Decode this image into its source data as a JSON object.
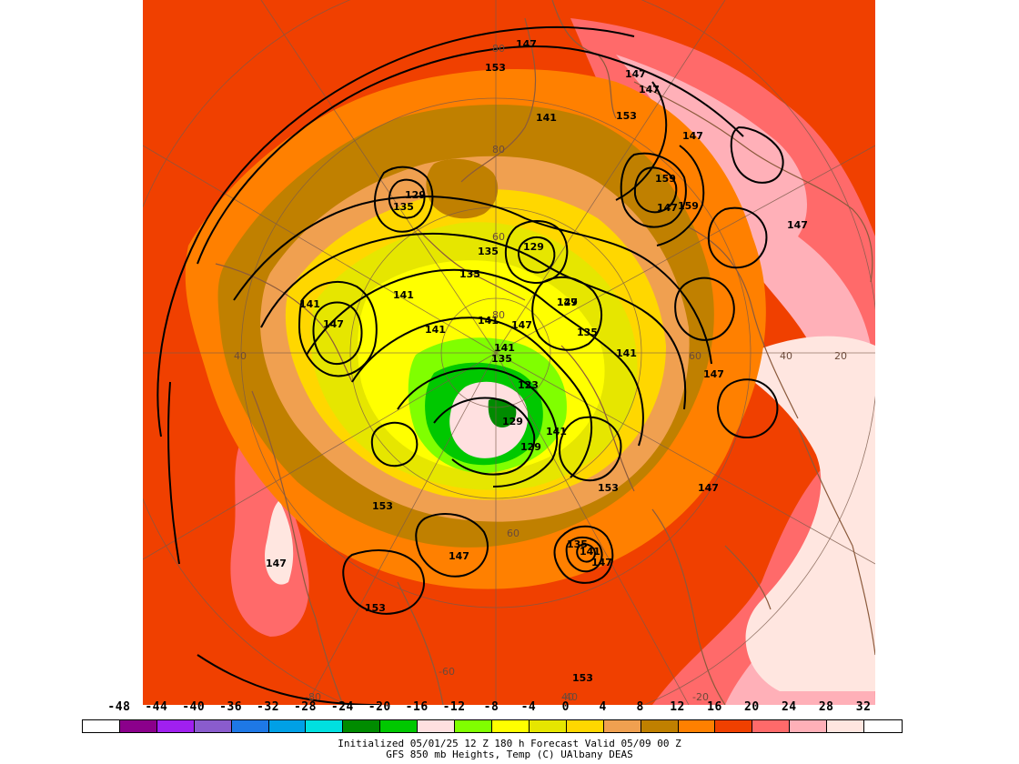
{
  "map": {
    "contour_labels": [
      "147",
      "153",
      "147",
      "147",
      "153",
      "147",
      "141",
      "129",
      "135",
      "159",
      "147",
      "159",
      "147",
      "129",
      "135",
      "135",
      "141",
      "141",
      "147",
      "141",
      "141",
      "147",
      "147",
      "141",
      "129",
      "135",
      "141",
      "135",
      "129",
      "123",
      "141",
      "129",
      "153",
      "153",
      "147",
      "147",
      "147",
      "135",
      "141",
      "147",
      "153",
      "147",
      "153"
    ],
    "latitude_labels": [
      "80",
      "80",
      "80",
      "60",
      "60",
      "60",
      "40",
      "40",
      "40",
      "20"
    ],
    "longitude_labels": [
      "-60",
      "-80",
      "-40",
      "-20"
    ],
    "colors": {
      "land_outline": "#8b5a3c",
      "grid": "#7a5a4a",
      "contour": "#000000"
    }
  },
  "colorbar": {
    "ticks": [
      "-48",
      "-44",
      "-40",
      "-36",
      "-32",
      "-28",
      "-24",
      "-20",
      "-16",
      "-12",
      "-8",
      "-4",
      "0",
      "4",
      "8",
      "12",
      "16",
      "20",
      "24",
      "28",
      "32"
    ],
    "colors": [
      "#ffffff",
      "#8b008b",
      "#a020f0",
      "#8a5ccd",
      "#1e78e6",
      "#00a0e6",
      "#00e0e0",
      "#008b00",
      "#00c800",
      "#ffe0e0",
      "#80ff00",
      "#ffff00",
      "#e6e600",
      "#ffd700",
      "#f0a050",
      "#c08000",
      "#ff8000",
      "#f04000",
      "#ff6a6a",
      "#ffb0b8",
      "#ffe6e0",
      "#ffffff"
    ]
  },
  "caption": {
    "line1": "Initialized 05/01/25 12 Z  180 h Forecast Valid 05/09 00 Z",
    "line2": "GFS 850 mb  Heights, Temp (C)      UAlbany DEAS"
  }
}
